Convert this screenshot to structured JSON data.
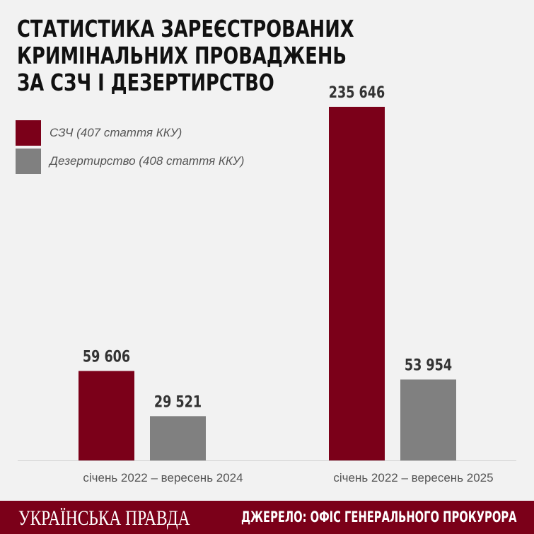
{
  "chart_data": {
    "type": "bar",
    "title": "СТАТИСТИКА ЗАРЕЄСТРОВАНИХ КРИМІНАЛЬНИХ ПРОВАДЖЕНЬ ЗА СЗЧ І ДЕЗЕРТИРСТВО",
    "title_lines": [
      "СТАТИСТИКА ЗАРЕЄСТРОВАНИХ",
      "КРИМІНАЛЬНИХ ПРОВАДЖЕНЬ",
      "ЗА СЗЧ І ДЕЗЕРТИРСТВО"
    ],
    "categories": [
      "січень 2022 – вересень 2024",
      "січень 2022 – вересень 2025"
    ],
    "series": [
      {
        "name": "СЗЧ (407 стаття ККУ)",
        "color": "#7b0019",
        "values": [
          59606,
          235646
        ],
        "labels": [
          "59 606",
          "235 646"
        ]
      },
      {
        "name": "Дезертирство (408 стаття ККУ)",
        "color": "#808080",
        "values": [
          29521,
          53954
        ],
        "labels": [
          "29 521",
          "53 954"
        ]
      }
    ],
    "ylim": [
      0,
      235646
    ],
    "grid": false,
    "legend": "top-left",
    "xlabel": "",
    "ylabel": ""
  },
  "footer": {
    "brand": "УКРАЇНСЬКА ПРАВДА",
    "source": "ДЖЕРЕЛО: ОФІС ГЕНЕРАЛЬНОГО ПРОКУРОРА",
    "color": "#7b0019"
  }
}
